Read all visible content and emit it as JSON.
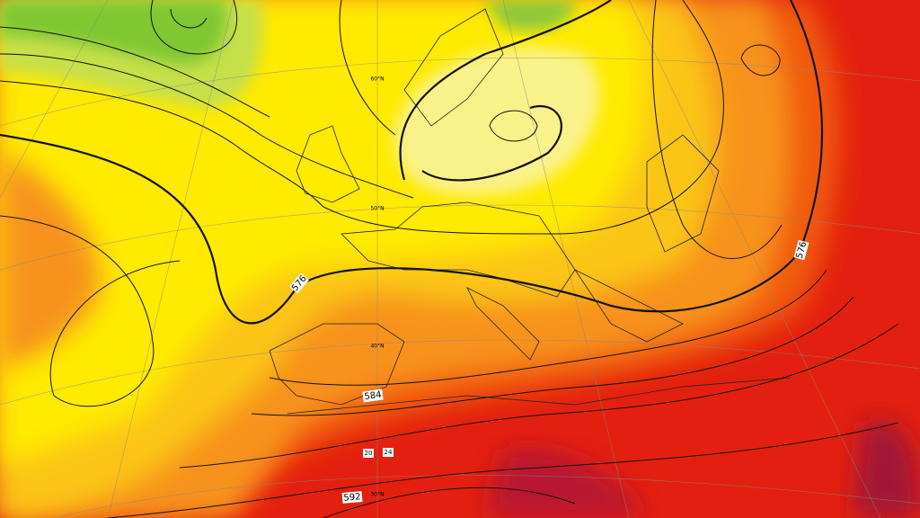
{
  "contour_labels": [
    "576",
    "576",
    "584",
    "592"
  ],
  "latitude_labels": [
    "60°N",
    "50°N",
    "40°N",
    "30°N"
  ],
  "temperature_labels": [
    "20",
    "24"
  ]
}
